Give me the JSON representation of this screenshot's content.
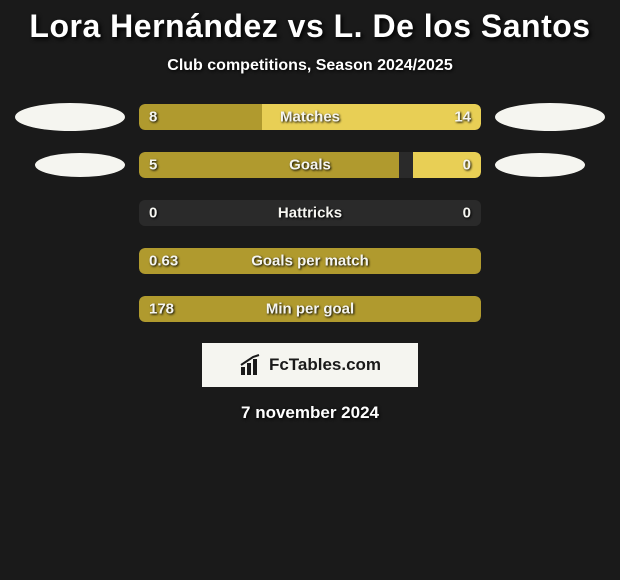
{
  "header": {
    "title": "Lora Hernández vs L. De los Santos",
    "subtitle": "Club competitions, Season 2024/2025"
  },
  "colors": {
    "player1": "#b09a2e",
    "player2": "#e8cf55",
    "track": "#2a2a2a",
    "ellipse": "#f5f5f0",
    "background": "#1a1a1a",
    "text": "#ffffff"
  },
  "stats": [
    {
      "label": "Matches",
      "left_value": "8",
      "right_value": "14",
      "left_width_pct": 36,
      "right_width_pct": 64,
      "show_ellipses": true,
      "ellipse_size": "large"
    },
    {
      "label": "Goals",
      "left_value": "5",
      "right_value": "0",
      "left_width_pct": 76,
      "right_width_pct": 20,
      "show_ellipses": true,
      "ellipse_size": "small"
    },
    {
      "label": "Hattricks",
      "left_value": "0",
      "right_value": "0",
      "left_width_pct": 0,
      "right_width_pct": 0,
      "show_ellipses": false
    },
    {
      "label": "Goals per match",
      "left_value": "0.63",
      "right_value": "",
      "left_width_pct": 100,
      "right_width_pct": 0,
      "show_ellipses": false
    },
    {
      "label": "Min per goal",
      "left_value": "178",
      "right_value": "",
      "left_width_pct": 100,
      "right_width_pct": 0,
      "show_ellipses": false
    }
  ],
  "brand": {
    "text": "FcTables.com"
  },
  "footer": {
    "date": "7 november 2024"
  }
}
